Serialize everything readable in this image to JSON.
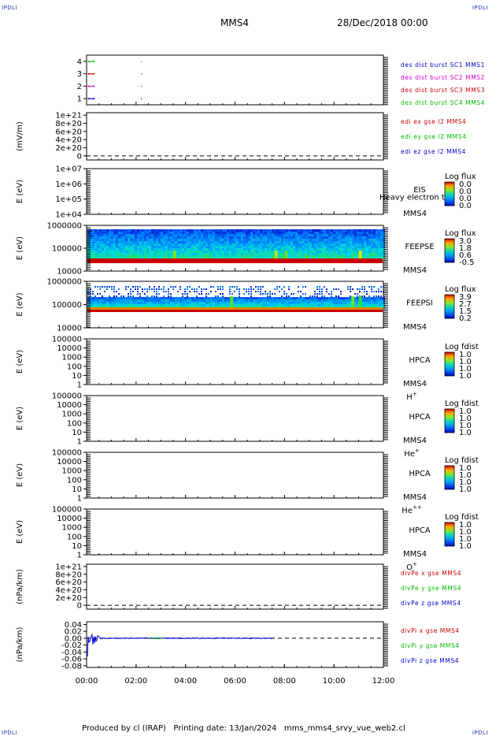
{
  "header": {
    "left_corner": "IPDLI",
    "right_corner": "IPDLI",
    "spacecraft": "MMS4",
    "datetime": "28/Dec/2018 00:00"
  },
  "footer": {
    "text": "Produced by cl (IRAP)   Printing date: 13/Jan/2024   mms_mms4_srvy_vue_web2.cl",
    "left_corner": "IPDLI",
    "right_corner": "IPDLI"
  },
  "time_axis": {
    "tick_labels": [
      "00:00",
      "02:00",
      "04:00",
      "06:00",
      "08:00",
      "10:00",
      "12:00"
    ],
    "range_hours": [
      0,
      12
    ]
  },
  "chart_data": [
    {
      "id": "p1",
      "type": "scatter",
      "ylabel": "",
      "yticks": [
        "1",
        "2",
        "3",
        "4"
      ],
      "yrange": [
        0.5,
        4.5
      ],
      "legend": [
        {
          "text": "des dist burst SC1 MMS1",
          "color": "#0000cc"
        },
        {
          "text": "des dist burst SC2 MMS2",
          "color": "#cc00cc"
        },
        {
          "text": "des dist burst SC3 MMS3",
          "color": "#cc0000"
        },
        {
          "text": "des dist burst SC4 MMS4",
          "color": "#00bb00"
        }
      ],
      "series": [
        {
          "level": 4,
          "color": "#00bb00",
          "x_hours": [
            0.05,
            0.2,
            2.2
          ]
        },
        {
          "level": 3,
          "color": "#cc0000",
          "x_hours": [
            0.05,
            0.2,
            2.2
          ]
        },
        {
          "level": 2,
          "color": "#cc00cc",
          "x_hours": [
            0.05,
            0.2,
            2.2
          ]
        },
        {
          "level": 1,
          "color": "#0000cc",
          "x_hours": [
            0.05,
            0.2,
            2.2
          ]
        }
      ]
    },
    {
      "id": "p2",
      "type": "line",
      "ylabel": "(mV/m)",
      "yticks": [
        "0",
        "2e+20",
        "4e+20",
        "6e+20",
        "8e+20",
        "1e+21"
      ],
      "yrange": [
        -1e+20,
        1.06e+21
      ],
      "zero_line": true,
      "legend": [
        {
          "text": "edi ex gse l2 MMS4",
          "color": "#cc0000"
        },
        {
          "text": "edi ey gse l2 MMS4",
          "color": "#00bb00"
        },
        {
          "text": "edi ez gse l2 MMS4",
          "color": "#0000cc"
        }
      ]
    },
    {
      "id": "p3",
      "type": "heatmap",
      "ylabel": "E (eV)",
      "yticks": [
        "1e+04",
        "1e+05",
        "1e+06",
        "1e+07"
      ],
      "instrument": [
        "EIS",
        "MMS4"
      ],
      "overlay_text": "Heavy electron to",
      "colorbar": {
        "title": "Log flux",
        "values": [
          "0.0",
          "0.0",
          "0.0",
          "0.0"
        ]
      },
      "spectrogram": "none"
    },
    {
      "id": "p4",
      "type": "heatmap",
      "ylabel": "E (eV)",
      "yticks": [
        "10000",
        "100000",
        "1000000"
      ],
      "instrument": [
        "FEEPSE",
        "MMS4"
      ],
      "colorbar": {
        "title": "Log flux",
        "values": [
          "3.0",
          "1.8",
          "0.6",
          "-0.5"
        ]
      },
      "spectrogram": "electron"
    },
    {
      "id": "p5",
      "type": "heatmap",
      "ylabel": "E (eV)",
      "yticks": [
        "10000",
        "100000",
        "1000000"
      ],
      "instrument": [
        "FEEPSI",
        "MMS4"
      ],
      "colorbar": {
        "title": "Log flux",
        "values": [
          "3.9",
          "2.7",
          "1.5",
          "0.2"
        ]
      },
      "spectrogram": "ion"
    },
    {
      "id": "p6",
      "type": "heatmap",
      "ylabel": "E (eV)",
      "yticks": [
        "1",
        "10",
        "100",
        "1000",
        "10000",
        "100000"
      ],
      "instrument": [
        "HPCA",
        "MMS4"
      ],
      "species": {
        "base": "H",
        "sup": "+"
      },
      "colorbar": {
        "title": "Log fdist",
        "values": [
          "1.0",
          "1.0",
          "1.0",
          "1.0"
        ]
      },
      "spectrogram": "none"
    },
    {
      "id": "p7",
      "type": "heatmap",
      "ylabel": "E (eV)",
      "yticks": [
        "1",
        "10",
        "100",
        "1000",
        "10000",
        "100000"
      ],
      "instrument": [
        "HPCA",
        "MMS4"
      ],
      "species": {
        "base": "He",
        "sup": "+"
      },
      "colorbar": {
        "title": "Log fdist",
        "values": [
          "1.0",
          "1.0",
          "1.0",
          "1.0"
        ]
      },
      "spectrogram": "none"
    },
    {
      "id": "p8",
      "type": "heatmap",
      "ylabel": "E (eV)",
      "yticks": [
        "1",
        "10",
        "100",
        "1000",
        "10000",
        "100000"
      ],
      "instrument": [
        "HPCA",
        "MMS4"
      ],
      "species": {
        "base": "He",
        "sup": "++"
      },
      "colorbar": {
        "title": "Log fdist",
        "values": [
          "1.0",
          "1.0",
          "1.0",
          "1.0"
        ]
      },
      "spectrogram": "none"
    },
    {
      "id": "p9",
      "type": "heatmap",
      "ylabel": "E (eV)",
      "yticks": [
        "1",
        "10",
        "100",
        "1000",
        "10000",
        "100000"
      ],
      "instrument": [
        "HPCA",
        "MMS4"
      ],
      "species": {
        "base": "O",
        "sup": "+"
      },
      "colorbar": {
        "title": "Log fdist",
        "values": [
          "1.0",
          "1.0",
          "1.0",
          "1.0"
        ]
      },
      "spectrogram": "none"
    },
    {
      "id": "p10",
      "type": "line",
      "ylabel": "(nPa/km)",
      "yticks": [
        "0",
        "2e+20",
        "4e+20",
        "6e+20",
        "8e+20",
        "1e+21"
      ],
      "yrange": [
        -1e+20,
        1.06e+21
      ],
      "zero_line": true,
      "legend": [
        {
          "text": "divPe x gse MMS4",
          "color": "#cc0000"
        },
        {
          "text": "divPe y gse MMS4",
          "color": "#00bb00"
        },
        {
          "text": "divPe z gse MMS4",
          "color": "#0000cc"
        }
      ]
    },
    {
      "id": "p11",
      "type": "line",
      "ylabel": "(nPa/km)",
      "yticks": [
        "-0.08",
        "-0.06",
        "-0.04",
        "-0.02",
        "0.00",
        "0.02",
        "0.04"
      ],
      "yrange": [
        -0.085,
        0.048
      ],
      "zero_line": true,
      "data_end_hours": 7.6,
      "legend": [
        {
          "text": "divPi x gse MMS4",
          "color": "#cc0000"
        },
        {
          "text": "divPi y gse MMS4",
          "color": "#00bb00"
        },
        {
          "text": "divPi z gse MMS4",
          "color": "#0000cc"
        }
      ]
    }
  ]
}
